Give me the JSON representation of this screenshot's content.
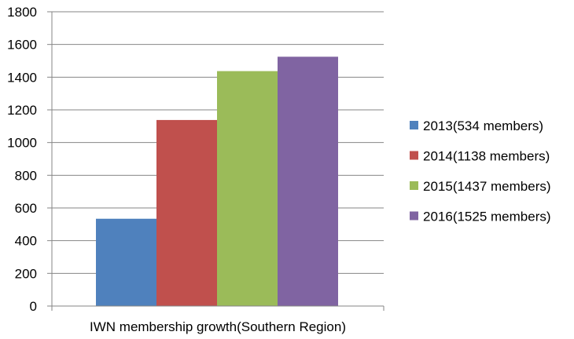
{
  "chart_data": {
    "type": "bar",
    "categories": [
      "IWN membership growth(Southern Region)"
    ],
    "series": [
      {
        "name": "2013(534 members)",
        "values": [
          534
        ],
        "color": "#4f81bd"
      },
      {
        "name": "2014(1138 members)",
        "values": [
          1138
        ],
        "color": "#c0504d"
      },
      {
        "name": "2015(1437 members)",
        "values": [
          1437
        ],
        "color": "#9bbb59"
      },
      {
        "name": "2016(1525 members)",
        "values": [
          1525
        ],
        "color": "#8064a2"
      }
    ],
    "yticks": [
      "0",
      "200",
      "400",
      "600",
      "800",
      "1000",
      "1200",
      "1400",
      "1600",
      "1800"
    ],
    "ylim": [
      0,
      1800
    ],
    "grid": true,
    "legend_position": "right"
  }
}
